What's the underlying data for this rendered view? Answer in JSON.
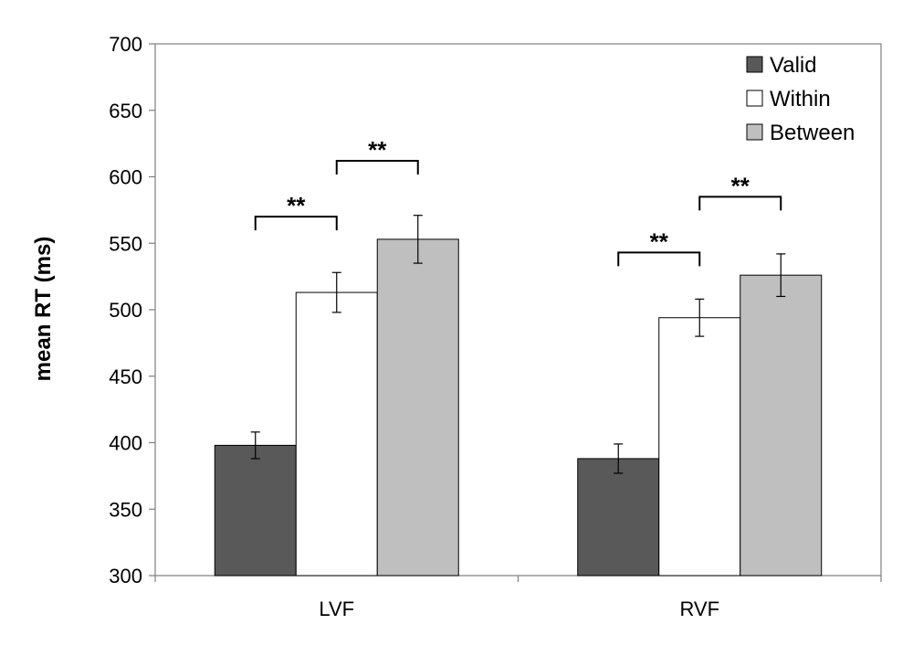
{
  "chart_data": {
    "type": "bar",
    "title": "",
    "xlabel": "",
    "ylabel": "mean RT (ms)",
    "categories": [
      "LVF",
      "RVF"
    ],
    "ylim": [
      300,
      700
    ],
    "yticks": [
      300,
      350,
      400,
      450,
      500,
      550,
      600,
      650,
      700
    ],
    "grid": false,
    "legend_position": "top-right",
    "series": [
      {
        "name": "Valid",
        "color": "#595959",
        "values": [
          398,
          388
        ],
        "errors": [
          10,
          11
        ]
      },
      {
        "name": "Within",
        "color": "#ffffff",
        "values": [
          513,
          494
        ],
        "errors": [
          15,
          14
        ]
      },
      {
        "name": "Between",
        "color": "#bfbfbf",
        "values": [
          553,
          526
        ],
        "errors": [
          18,
          16
        ]
      }
    ],
    "significance": [
      {
        "category": 0,
        "from": 0,
        "to": 1,
        "y": 570,
        "label": "**"
      },
      {
        "category": 0,
        "from": 1,
        "to": 2,
        "y": 612,
        "label": "**"
      },
      {
        "category": 1,
        "from": 0,
        "to": 1,
        "y": 543,
        "label": "**"
      },
      {
        "category": 1,
        "from": 1,
        "to": 2,
        "y": 585,
        "label": "**"
      }
    ]
  }
}
